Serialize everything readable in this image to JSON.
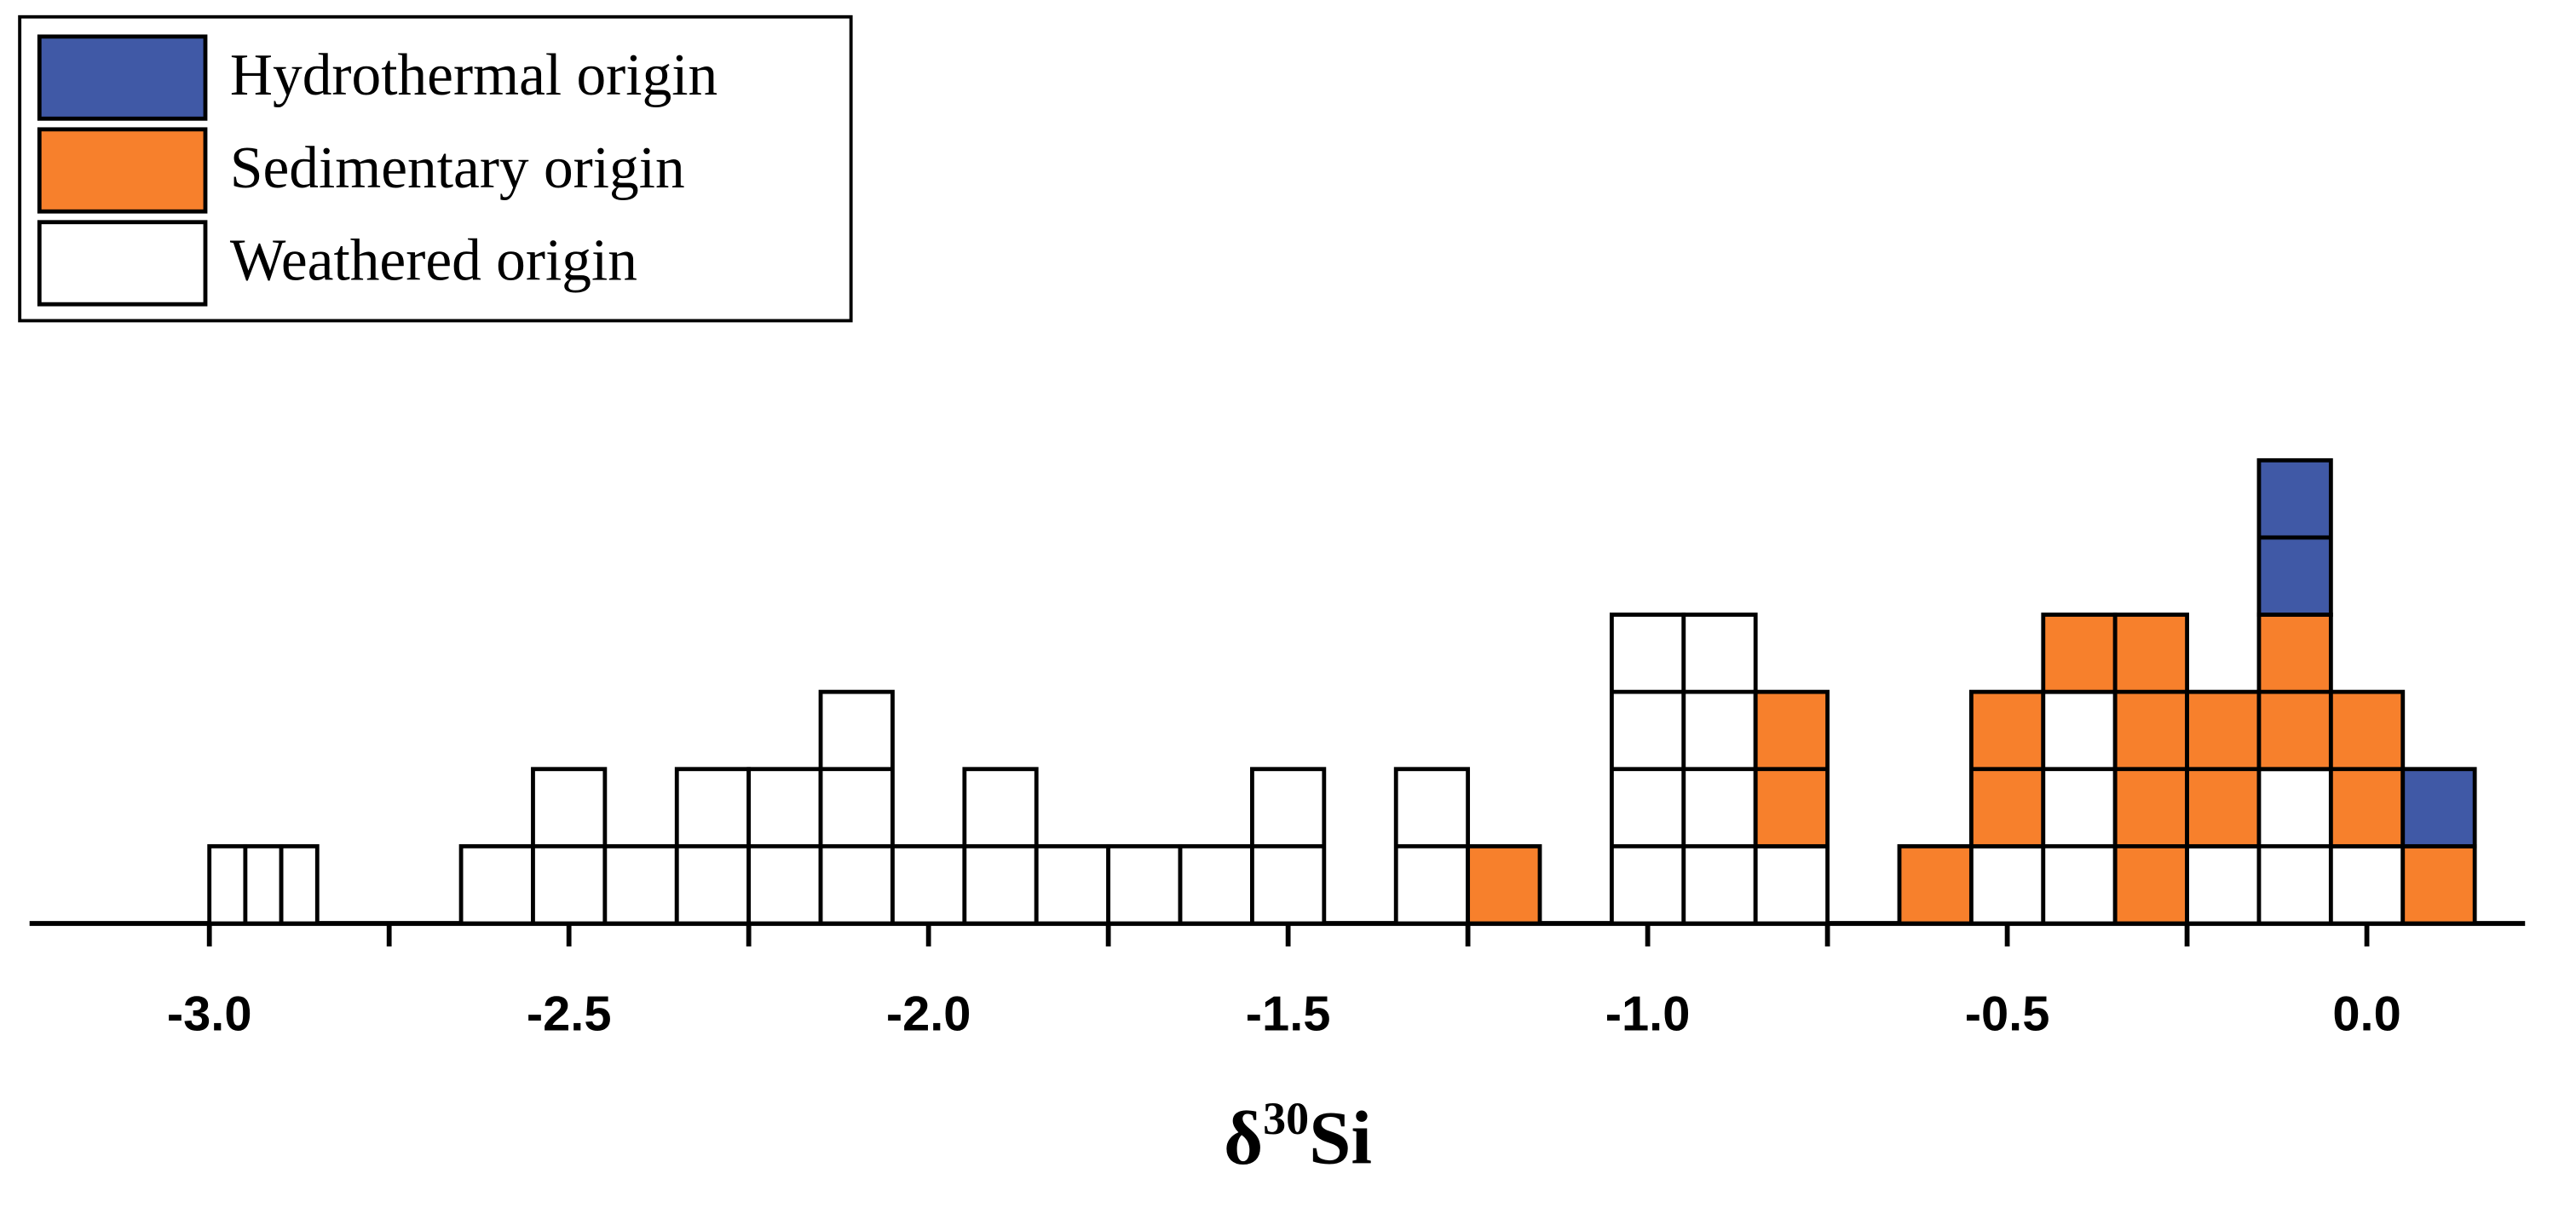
{
  "chart_data": {
    "type": "histogram",
    "x_label": [
      "δ",
      "30",
      "Si"
    ],
    "bins": [
      -3.0,
      -2.95,
      -2.9,
      -2.85,
      -2.65,
      -2.55,
      -2.45,
      -2.35,
      -2.25,
      -2.15,
      -2.05,
      -1.95,
      -1.85,
      -1.75,
      -1.65,
      -1.55,
      -1.45,
      -1.35,
      -1.25,
      -1.15,
      -1.05,
      -0.95,
      -0.85,
      -0.75,
      -0.65,
      -0.55,
      -0.45,
      -0.35,
      -0.25,
      -0.15,
      -0.05,
      0.05,
      0.15
    ],
    "series": [
      {
        "name": "Weathered origin",
        "color": "#ffffff",
        "values": [
          1,
          1,
          1,
          0,
          1,
          2,
          1,
          2,
          2,
          3,
          1,
          2,
          1,
          1,
          1,
          2,
          0,
          2,
          0,
          0,
          4,
          4,
          1,
          0,
          0,
          1,
          3,
          0,
          1,
          2,
          1,
          0
        ]
      },
      {
        "name": "Sedimentary origin",
        "color": "#f7802c",
        "values": [
          0,
          0,
          0,
          0,
          0,
          0,
          0,
          0,
          0,
          0,
          0,
          0,
          0,
          0,
          0,
          0,
          0,
          0,
          1,
          0,
          0,
          0,
          2,
          0,
          1,
          2,
          1,
          4,
          2,
          2,
          2,
          1
        ]
      },
      {
        "name": "Hydrothermal origin",
        "color": "#4059a6",
        "values": [
          0,
          0,
          0,
          0,
          0,
          0,
          0,
          0,
          0,
          0,
          0,
          0,
          0,
          0,
          0,
          0,
          0,
          0,
          0,
          0,
          0,
          0,
          0,
          0,
          0,
          0,
          0,
          0,
          0,
          2,
          0,
          1
        ]
      }
    ],
    "legend_order": [
      2,
      1,
      0
    ],
    "xlim": [
      -3.25,
      0.22
    ],
    "xticks": [
      {
        "value": -3.0,
        "label": "-3.0"
      },
      {
        "value": -2.5,
        "label": "-2.5"
      },
      {
        "value": -2.0,
        "label": "-2.0"
      },
      {
        "value": -1.5,
        "label": "-1.5"
      },
      {
        "value": -1.0,
        "label": "-1.0"
      },
      {
        "value": -0.5,
        "label": "-0.5"
      },
      {
        "value": 0.0,
        "label": "0.0"
      }
    ],
    "xticks_minor": [
      -2.75,
      -2.25,
      -1.75,
      -1.25,
      -0.75,
      -0.25
    ],
    "legend": "upper left"
  }
}
